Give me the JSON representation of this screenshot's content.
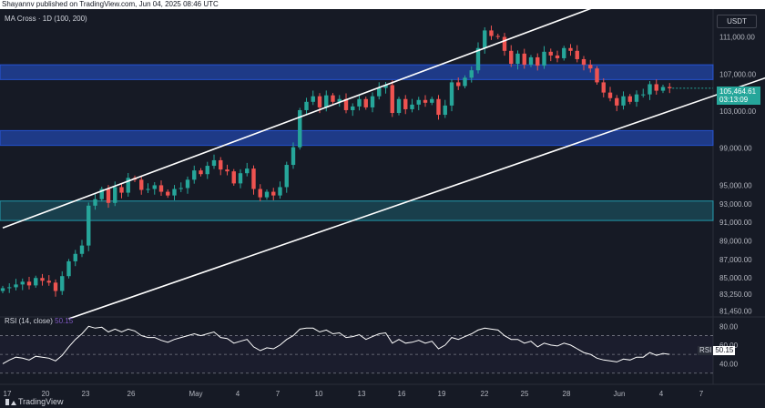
{
  "header": {
    "publisher_line": "Shayannv published on TradingView.com, Jun 04, 2025 08:46 UTC"
  },
  "legend": {
    "indicator": "MA Cross · 1D (100, 200)"
  },
  "currency": "USDT",
  "last_price": {
    "value": "105,464.61",
    "countdown": "03:13:09"
  },
  "rsi": {
    "label": "RSI (14, close)",
    "value": "50.15",
    "tag_label": "RSI",
    "tag_value": "50.15"
  },
  "footer": {
    "brand": "TradingView"
  },
  "price_axis": {
    "ticks": [
      "111,000.00",
      "107,000.00",
      "103,000.00",
      "99,000.00",
      "95,000.00",
      "93,000.00",
      "91,000.00",
      "89,000.00",
      "87,000.00",
      "85,000.00",
      "83,250.00",
      "81,450.00"
    ]
  },
  "rsi_axis": {
    "ticks": [
      "80.00",
      "60.00",
      "40.00"
    ]
  },
  "time_axis": {
    "ticks": [
      "17",
      "20",
      "23",
      "26",
      "May",
      "4",
      "7",
      "10",
      "13",
      "16",
      "19",
      "22",
      "25",
      "28",
      "Jun",
      "4",
      "7"
    ]
  },
  "colors": {
    "up": "#26a69a",
    "down": "#ef5350",
    "zone": "#2962ff",
    "zone_teal": "#26c6da",
    "channel": "#ffffff",
    "rsi_line": "#ffffff",
    "background": "#161a25"
  },
  "chart_data": {
    "type": "candlestick",
    "symbol_pair_quote": "USDT",
    "timeframe": "1D",
    "ylim": [
      80800,
      114000
    ],
    "x": [
      "17",
      "20",
      "23",
      "26",
      "May",
      "4",
      "7",
      "10",
      "13",
      "16",
      "19",
      "22",
      "25",
      "28",
      "Jun",
      "4",
      "7"
    ],
    "closes": [
      83900,
      84000,
      84300,
      84600,
      84200,
      85000,
      84700,
      84500,
      83600,
      85200,
      86800,
      87600,
      88500,
      92800,
      93500,
      94600,
      93100,
      94800,
      94200,
      95800,
      95600,
      94500,
      94600,
      95000,
      94300,
      93900,
      94600,
      94700,
      95600,
      96600,
      96200,
      97100,
      97700,
      96700,
      96500,
      95200,
      96300,
      96800,
      94600,
      93700,
      94300,
      93900,
      94800,
      97200,
      99100,
      103100,
      104000,
      104600,
      103400,
      104700,
      104000,
      104300,
      103100,
      103500,
      104300,
      103400,
      104600,
      105500,
      105800,
      102800,
      104300,
      103200,
      103700,
      104200,
      103900,
      104300,
      102600,
      103600,
      106100,
      105700,
      106600,
      107400,
      109800,
      111700,
      111100,
      111000,
      109500,
      108100,
      109200,
      108000,
      108800,
      107900,
      109400,
      109000,
      108700,
      109800,
      109500,
      108600,
      108000,
      107600,
      106100,
      105000,
      104400,
      103600,
      104600,
      104000,
      104800,
      104800,
      105900,
      105200,
      105600,
      105464
    ]
  },
  "chart_data_rsi": {
    "type": "line",
    "name": "RSI (14, close)",
    "ylim": [
      20,
      90
    ],
    "values": [
      40,
      44,
      47,
      46,
      44,
      48,
      47,
      46,
      43,
      49,
      58,
      66,
      72,
      80,
      78,
      79,
      74,
      77,
      74,
      77,
      75,
      70,
      68,
      68,
      65,
      63,
      66,
      68,
      70,
      72,
      70,
      72,
      74,
      68,
      67,
      62,
      64,
      66,
      58,
      54,
      57,
      56,
      60,
      66,
      70,
      77,
      78,
      78,
      74,
      76,
      72,
      73,
      68,
      69,
      71,
      66,
      69,
      72,
      73,
      62,
      66,
      62,
      63,
      65,
      62,
      64,
      56,
      60,
      68,
      66,
      69,
      72,
      76,
      78,
      77,
      76,
      70,
      66,
      66,
      62,
      64,
      58,
      62,
      60,
      59,
      62,
      60,
      56,
      52,
      50,
      46,
      44,
      43,
      42,
      45,
      44,
      47,
      47,
      52,
      49,
      51,
      50
    ]
  },
  "zones": [
    {
      "name": "upper-resistance",
      "from": 106400,
      "to": 108000
    },
    {
      "name": "mid-support",
      "from": 99300,
      "to": 100900
    },
    {
      "name": "lower-support",
      "from": 91200,
      "to": 93300
    }
  ],
  "channel": {
    "upper": [
      [
        0,
        90400
      ],
      [
        99,
        116700
      ]
    ],
    "lower": [
      [
        10,
        80600
      ],
      [
        129,
        109900
      ]
    ]
  }
}
